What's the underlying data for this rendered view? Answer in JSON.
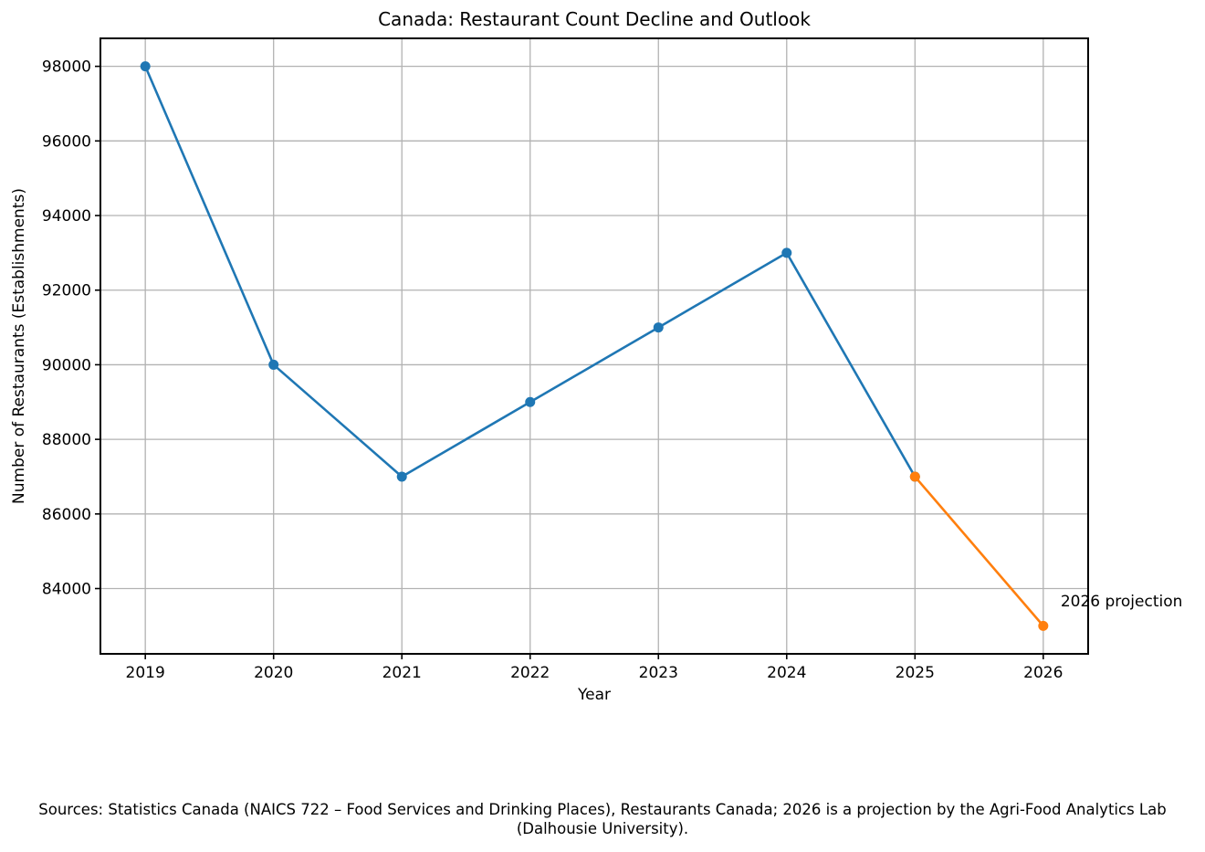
{
  "header": {
    "title": "Canada: Restaurant Count Decline and Outlook"
  },
  "chart_data": {
    "type": "line",
    "title": "Canada: Restaurant Count Decline and Outlook",
    "xlabel": "Year",
    "ylabel": "Number of Restaurants (Establishments)",
    "categories": [
      2019,
      2020,
      2021,
      2022,
      2023,
      2024,
      2025,
      2026
    ],
    "series": [
      {
        "name": "historical",
        "color": "#1f77b4",
        "x": [
          2019,
          2020,
          2021,
          2022,
          2023,
          2024,
          2025
        ],
        "values": [
          98000,
          90000,
          87000,
          89000,
          91000,
          93000,
          87000
        ]
      },
      {
        "name": "projection",
        "color": "#ff7f0e",
        "x": [
          2025,
          2026
        ],
        "values": [
          87000,
          83000
        ]
      }
    ],
    "annotations": [
      {
        "text": "2026 projection",
        "x": 2026,
        "y": 83000
      }
    ],
    "yticks": [
      84000,
      86000,
      88000,
      90000,
      92000,
      94000,
      96000,
      98000
    ],
    "xlim": [
      2018.65,
      2026.35
    ],
    "ylim": [
      82250,
      98750
    ],
    "grid": true,
    "grid_color": "#b2b2b2",
    "legend": "none",
    "colors": {
      "historical": "#1f77b4",
      "projection": "#ff7f0e",
      "spine": "#000000"
    }
  },
  "footer": {
    "lines": [
      "Sources: Statistics Canada (NAICS 722 – Food Services and Drinking Places), Restaurants Canada; 2026 is a projection by the Agri-Food Analytics Lab",
      "(Dalhousie University)."
    ]
  }
}
